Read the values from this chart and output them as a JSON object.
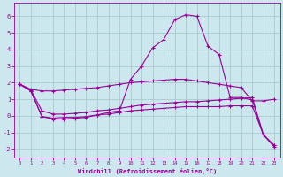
{
  "xlabel": "Windchill (Refroidissement éolien,°C)",
  "x_ticks": [
    0,
    1,
    2,
    3,
    4,
    5,
    6,
    7,
    8,
    9,
    10,
    11,
    12,
    13,
    14,
    15,
    16,
    17,
    18,
    19,
    20,
    21,
    22,
    23
  ],
  "ylim": [
    -2.5,
    6.8
  ],
  "xlim": [
    -0.5,
    23.5
  ],
  "background_color": "#cce8ee",
  "grid_color": "#aacccc",
  "line_color": "#990099",
  "lines": [
    {
      "x": [
        0,
        1,
        2,
        3,
        4,
        5,
        6,
        7,
        8,
        9,
        10,
        11,
        12,
        13,
        14,
        15,
        16,
        17,
        18,
        19,
        20,
        21,
        22,
        23
      ],
      "y": [
        1.9,
        1.6,
        1.5,
        1.5,
        1.55,
        1.6,
        1.65,
        1.7,
        1.8,
        1.9,
        2.0,
        2.05,
        2.1,
        2.15,
        2.2,
        2.2,
        2.1,
        2.0,
        1.9,
        1.8,
        1.7,
        0.9,
        0.9,
        1.0
      ]
    },
    {
      "x": [
        0,
        1,
        2,
        3,
        4,
        5,
        6,
        7,
        8,
        9,
        10,
        11,
        12,
        13,
        14,
        15,
        16,
        17,
        18,
        19,
        20,
        21,
        22,
        23
      ],
      "y": [
        1.9,
        1.55,
        0.3,
        0.1,
        0.1,
        0.15,
        0.2,
        0.3,
        0.35,
        0.45,
        0.55,
        0.65,
        0.7,
        0.75,
        0.8,
        0.85,
        0.85,
        0.9,
        0.95,
        1.0,
        1.05,
        1.1,
        -1.15,
        -1.8
      ]
    },
    {
      "x": [
        0,
        1,
        2,
        3,
        4,
        5,
        6,
        7,
        8,
        9,
        10,
        11,
        12,
        13,
        14,
        15,
        16,
        17,
        18,
        19,
        20,
        21,
        22,
        23
      ],
      "y": [
        1.9,
        1.5,
        -0.05,
        -0.15,
        -0.1,
        -0.1,
        -0.05,
        0.05,
        0.1,
        0.2,
        0.3,
        0.35,
        0.4,
        0.45,
        0.5,
        0.55,
        0.55,
        0.55,
        0.55,
        0.6,
        0.6,
        0.6,
        -1.15,
        -1.8
      ]
    },
    {
      "x": [
        0,
        1,
        2,
        3,
        4,
        5,
        6,
        7,
        8,
        9,
        10,
        11,
        12,
        13,
        14,
        15,
        16,
        17,
        18,
        19,
        20,
        21,
        22,
        23
      ],
      "y": [
        1.9,
        1.5,
        -0.05,
        -0.2,
        -0.2,
        -0.15,
        -0.1,
        0.05,
        0.2,
        0.3,
        2.2,
        3.0,
        4.1,
        4.6,
        5.8,
        6.1,
        6.0,
        4.2,
        3.7,
        1.1,
        1.1,
        0.95,
        -1.15,
        -1.9
      ]
    }
  ]
}
